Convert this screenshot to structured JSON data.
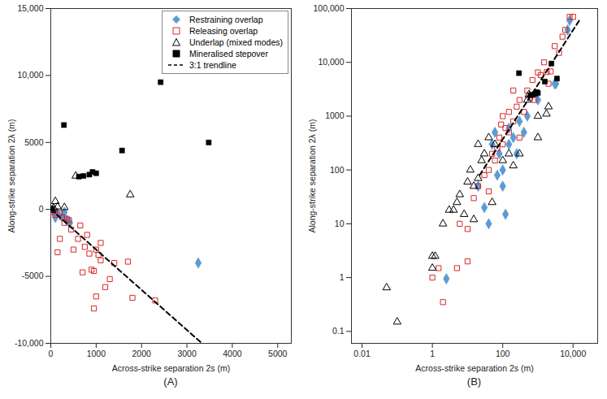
{
  "chart_data": [
    {
      "type": "scatter",
      "title": "(A)",
      "x_label": "Across-strike separation 2s (m)",
      "y_label": "Along-strike separation 2λ (m)",
      "xlim": [
        0,
        5300
      ],
      "ylim": [
        -10000,
        15000
      ],
      "xticks": [
        0,
        1000,
        2000,
        3000,
        4000,
        5000
      ],
      "yticks": [
        {
          "value": -10000,
          "label": "-10,000"
        },
        -5000,
        0,
        5000,
        {
          "value": 10000,
          "label": "10,000"
        },
        {
          "value": 15000,
          "label": "15,000"
        }
      ],
      "legend": "top-right",
      "series": [
        {
          "name": "Restraining overlap",
          "color": "#5b9bd5",
          "marker": "diamond",
          "x": [
            50,
            150,
            250,
            350,
            420,
            100,
            300,
            3250
          ],
          "y": [
            -100,
            -300,
            -500,
            -800,
            -1000,
            -600,
            -200,
            -4000
          ]
        },
        {
          "name": "Releasing overlap",
          "color": "#d62728",
          "marker": "square-open",
          "x": [
            50,
            100,
            200,
            250,
            350,
            150,
            300,
            450,
            500,
            600,
            700,
            750,
            850,
            900,
            950,
            1000,
            1050,
            1100,
            1200,
            1300,
            1000,
            950,
            1400,
            1700,
            1800,
            2300,
            1100,
            200,
            400,
            800,
            650
          ],
          "y": [
            -200,
            -400,
            -300,
            -600,
            -700,
            -3200,
            -1000,
            -1500,
            -3000,
            -2200,
            -4700,
            -2800,
            -3300,
            -4500,
            -4600,
            -3000,
            -3400,
            -3800,
            -5800,
            -5200,
            -6500,
            -7400,
            -4000,
            -3900,
            -6600,
            -6800,
            -2500,
            -2200,
            -800,
            -1900,
            -1200
          ]
        },
        {
          "name": "Underlap (mixed modes)",
          "color": "#000000",
          "marker": "triangle-open",
          "x": [
            550,
            1750,
            100,
            300,
            60,
            30,
            150
          ],
          "y": [
            2500,
            1100,
            600,
            150,
            100,
            -50,
            200
          ]
        },
        {
          "name": "Mineralised stepover",
          "color": "#000000",
          "marker": "square",
          "x": [
            290,
            2420,
            3480,
            1570,
            920,
            850,
            720,
            620,
            1000,
            20
          ],
          "y": [
            6300,
            9500,
            5000,
            4400,
            2800,
            2600,
            2500,
            2450,
            2700,
            50
          ]
        },
        {
          "name": "3:1 trendline",
          "color": "#000000",
          "type": "line",
          "line_style": "dashed",
          "x": [
            0,
            3330
          ],
          "y": [
            0,
            -10000
          ]
        }
      ]
    },
    {
      "type": "scatter",
      "title": "(B)",
      "x_label": "Across-strike separation 2s (m)",
      "y_label": "Along-strike separation 2λ (m)",
      "log": true,
      "xlim": [
        0.005,
        50000
      ],
      "ylim": [
        0.06,
        100000
      ],
      "xticks": [
        0.01,
        1,
        100,
        {
          "value": 10000,
          "label": "10,000"
        }
      ],
      "yticks": [
        0.1,
        1,
        10,
        100,
        1000,
        {
          "value": 10000,
          "label": "10,000"
        },
        {
          "value": 100000,
          "label": "100,000"
        }
      ],
      "series": [
        {
          "name": "Restraining overlap",
          "color": "#5b9bd5",
          "marker": "diamond",
          "x": [
            2.5,
            20,
            30,
            40,
            50,
            70,
            80,
            100,
            100,
            120,
            150,
            200,
            150,
            300,
            400,
            500,
            1000,
            3000,
            7000,
            8000,
            3250,
            60,
            250
          ],
          "y": [
            0.95,
            50,
            20,
            10,
            300,
            80,
            200,
            100,
            50,
            15,
            300,
            400,
            600,
            800,
            500,
            1000,
            2000,
            4000,
            40000,
            60000,
            4000,
            500,
            200
          ]
        },
        {
          "name": "Releasing overlap",
          "color": "#d62728",
          "marker": "square-open",
          "x": [
            1,
            1.5,
            2,
            5,
            6,
            10,
            15,
            20,
            30,
            40,
            50,
            60,
            80,
            100,
            100,
            120,
            150,
            200,
            200,
            250,
            300,
            400,
            500,
            600,
            700,
            800,
            1000,
            1200,
            1500,
            2000,
            3000,
            5000,
            6000,
            8000,
            10000,
            4000,
            2300,
            1800,
            300,
            70,
            150,
            90,
            40,
            10
          ],
          "y": [
            1,
            1.5,
            0.35,
            1.5,
            10,
            8,
            30,
            50,
            80,
            100,
            200,
            150,
            400,
            300,
            1000,
            600,
            500,
            800,
            3000,
            1500,
            2000,
            1200,
            3000,
            2200,
            4700,
            2000,
            6500,
            5800,
            10000,
            4000,
            20000,
            30000,
            40000,
            70000,
            70000,
            15000,
            6800,
            6600,
            400,
            250,
            1200,
            700,
            40,
            2
          ]
        },
        {
          "name": "Underlap (mixed modes)",
          "color": "#000000",
          "marker": "triangle-open",
          "x": [
            0.05,
            0.1,
            1,
            1,
            1.2,
            2,
            3,
            4,
            5,
            8,
            10,
            6,
            15,
            20,
            25,
            20,
            30,
            40,
            50,
            60,
            100,
            150,
            200,
            300,
            500,
            1000,
            1000,
            2000,
            550,
            1750,
            15,
            12
          ],
          "y": [
            0.65,
            0.15,
            2.5,
            1.5,
            2.5,
            10,
            18,
            18,
            25,
            15,
            60,
            35,
            12,
            300,
            150,
            70,
            200,
            400,
            25,
            300,
            150,
            200,
            120,
            200,
            2000,
            400,
            1000,
            1500,
            2500,
            1100,
            50,
            100
          ]
        },
        {
          "name": "Mineralised stepover",
          "color": "#000000",
          "marker": "square",
          "x": [
            290,
            2420,
            3480,
            1570,
            920,
            850,
            720,
            620,
            1000
          ],
          "y": [
            6300,
            9500,
            5000,
            4400,
            2800,
            2600,
            2500,
            2450,
            2700
          ]
        },
        {
          "name": "3:1 trendline",
          "color": "#000000",
          "type": "line",
          "line_style": "dashed",
          "x": [
            22,
            15000
          ],
          "y": [
            80,
            60000
          ]
        }
      ]
    }
  ]
}
